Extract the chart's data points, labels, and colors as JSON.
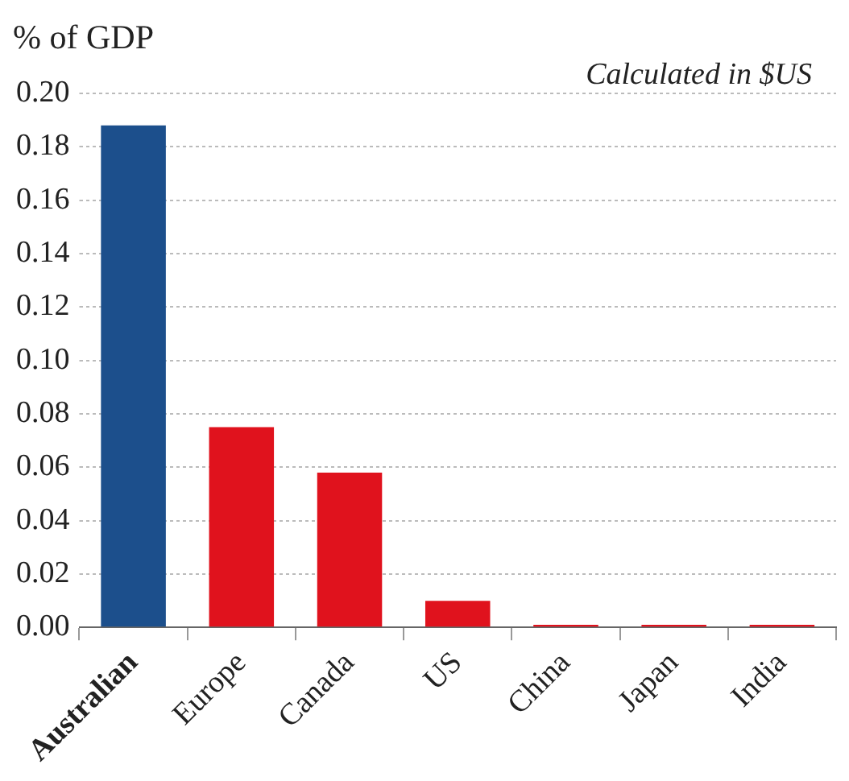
{
  "chart_data": {
    "type": "bar",
    "ylabel": "% of GDP",
    "annotations": [
      "Calculated in $US"
    ],
    "categories": [
      "Australian",
      "Europe",
      "Canada",
      "US",
      "China",
      "Japan",
      "India"
    ],
    "values": [
      0.188,
      0.075,
      0.058,
      0.01,
      0.001,
      0.001,
      0.001
    ],
    "colors": [
      "#1c4f8c",
      "#e0121d",
      "#e0121d",
      "#e0121d",
      "#e0121d",
      "#e0121d",
      "#e0121d"
    ],
    "ylim": [
      0,
      0.2
    ],
    "yticks": [
      {
        "value": 0,
        "label": "0.00"
      },
      {
        "value": 0.02,
        "label": "0.02"
      },
      {
        "value": 0.04,
        "label": "0.04"
      },
      {
        "value": 0.06,
        "label": "0.06"
      },
      {
        "value": 0.08,
        "label": "0.08"
      },
      {
        "value": 0.1,
        "label": "0.10"
      },
      {
        "value": 0.12,
        "label": "0.12"
      },
      {
        "value": 0.14,
        "label": "0.14"
      },
      {
        "value": 0.16,
        "label": "0.16"
      },
      {
        "value": 0.18,
        "label": "0.18"
      },
      {
        "value": 0.2,
        "label": "0.20"
      }
    ],
    "grid": "y"
  }
}
